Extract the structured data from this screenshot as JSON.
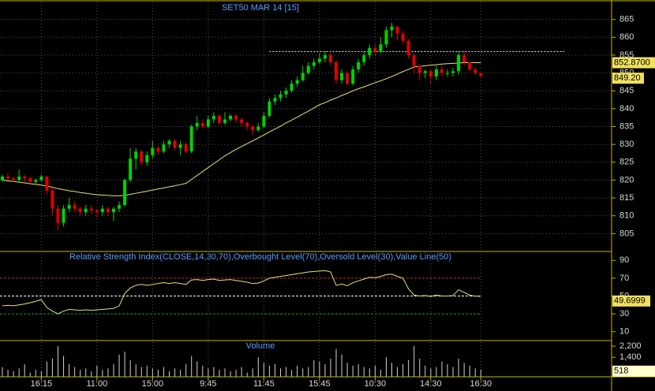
{
  "chart_data": [
    {
      "type": "candlestick",
      "title": "SET50 MAR 14   [15]",
      "categories": [
        null,
        null,
        null,
        null,
        null,
        null,
        null,
        "16:15",
        null,
        null,
        null,
        null,
        null,
        null,
        null,
        null,
        null,
        "11:00",
        null,
        null,
        null,
        null,
        null,
        null,
        null,
        null,
        null,
        "15:00",
        null,
        null,
        null,
        null,
        null,
        null,
        null,
        null,
        null,
        "9:45",
        null,
        null,
        null,
        null,
        null,
        null,
        null,
        null,
        null,
        "11:45",
        null,
        null,
        null,
        null,
        null,
        null,
        null,
        null,
        null,
        "15:45",
        null,
        null,
        null,
        null,
        null,
        null,
        null,
        null,
        null,
        "10:30",
        null,
        null,
        null,
        null,
        null,
        null,
        null,
        null,
        null,
        "14:30",
        null,
        null,
        null,
        null,
        null,
        null,
        null,
        null,
        "16:30"
      ],
      "open": [
        820,
        821,
        820.5,
        820,
        821,
        820.5,
        819.5,
        820,
        821,
        817,
        812,
        808,
        812,
        813,
        812,
        811,
        812,
        811.5,
        811,
        812,
        811,
        812,
        813,
        820,
        826,
        828,
        825,
        827,
        829,
        828,
        830,
        831,
        829,
        830,
        828,
        835,
        836,
        835,
        837,
        838,
        836,
        837,
        838,
        837,
        836,
        835,
        834,
        835,
        838,
        842,
        843,
        844,
        845,
        847,
        848,
        850,
        852,
        853,
        854,
        855,
        853,
        848,
        850,
        847,
        851,
        853,
        855,
        857,
        856,
        858,
        862,
        863,
        861,
        859,
        855,
        852,
        850,
        850.5,
        849,
        851,
        850,
        850,
        850.5,
        855,
        853,
        851,
        850
      ],
      "high": [
        821.5,
        822,
        821,
        823,
        821.5,
        821,
        820.5,
        821.5,
        821,
        818,
        813,
        813,
        815,
        814,
        812.5,
        813,
        813,
        812,
        813,
        812.5,
        812.5,
        814,
        820.5,
        829,
        829,
        828.5,
        828,
        831,
        829.5,
        831,
        831.5,
        831.5,
        831,
        830.5,
        835.5,
        838,
        837,
        838,
        839,
        838.5,
        839,
        838.5,
        838.5,
        837.5,
        836.5,
        835.5,
        836,
        839,
        843,
        844,
        845,
        846,
        848,
        849,
        852,
        853,
        854,
        855.5,
        856,
        855.5,
        853.5,
        851,
        850.5,
        852,
        854,
        856,
        858,
        858,
        860,
        863,
        864,
        863,
        862,
        859.5,
        855.5,
        852.5,
        851,
        851,
        852,
        852,
        851,
        851.5,
        856,
        856,
        853.5,
        851.5,
        850
      ],
      "low": [
        819.5,
        820,
        819.5,
        819.5,
        819.5,
        819,
        819,
        819.5,
        816,
        810,
        806,
        807,
        811,
        811,
        810,
        810,
        810.5,
        809.5,
        810,
        810,
        808.5,
        811,
        812.5,
        819.5,
        823,
        824,
        824,
        826,
        827,
        827.5,
        829,
        828.5,
        827,
        827.5,
        827.5,
        834,
        834.5,
        834.5,
        836,
        835.5,
        835.5,
        836.5,
        836,
        835,
        834,
        832.5,
        833.5,
        834.5,
        837.5,
        841,
        842,
        843,
        844.5,
        846,
        847.5,
        849.5,
        851,
        852.5,
        853,
        852,
        847,
        847,
        846.5,
        846.5,
        850,
        852,
        854,
        855,
        855.5,
        857,
        860,
        859,
        858,
        854,
        850,
        848,
        848.5,
        847,
        848,
        849,
        849,
        849,
        849.5,
        852,
        850.5,
        849.5,
        848.8
      ],
      "close": [
        821,
        820.5,
        820,
        821,
        820.5,
        819.5,
        820,
        821,
        817,
        812,
        808,
        812,
        813,
        812,
        811,
        812,
        811.5,
        811,
        812,
        811,
        812,
        813,
        820,
        826,
        828,
        825,
        827,
        829,
        828,
        830,
        831,
        829,
        830,
        828,
        835,
        836,
        835,
        837,
        838,
        836,
        837,
        838,
        837,
        836,
        835,
        834,
        835,
        838,
        842,
        843,
        844,
        845,
        847,
        848,
        850,
        852,
        853,
        854,
        855,
        853,
        848,
        850,
        847,
        851,
        853,
        855,
        857,
        856,
        858,
        862,
        863,
        861,
        859,
        855,
        852,
        850,
        850.5,
        849,
        851,
        850,
        850,
        850.5,
        855,
        853,
        851,
        850,
        849.2
      ],
      "close_last_label": {
        "value": 849.2,
        "label": "849.20"
      },
      "up_color": "#00d400",
      "down_color": "#e00000",
      "ma": {
        "color": "#e8e27a",
        "values": [
          820,
          819.8,
          819.6,
          819.4,
          819.2,
          819,
          818.8,
          818.6,
          818.3,
          818,
          817.6,
          817.3,
          817,
          816.8,
          816.5,
          816.3,
          816.1,
          815.9,
          815.8,
          815.7,
          815.6,
          815.6,
          815.7,
          816,
          816.3,
          816.6,
          816.9,
          817.2,
          817.5,
          817.8,
          818.1,
          818.4,
          818.7,
          819.1,
          820.2,
          821.3,
          822.4,
          823.5,
          824.6,
          825.7,
          826.8,
          827.7,
          828.6,
          829.4,
          830.2,
          831,
          831.8,
          832.6,
          833.5,
          834.3,
          835.1,
          836,
          836.8,
          837.6,
          838.5,
          839.3,
          840.2,
          841.1,
          841.7,
          842.4,
          843,
          843.7,
          844.3,
          845,
          845.6,
          846.1,
          846.7,
          847.3,
          847.8,
          848.4,
          849,
          849.7,
          850.4,
          851,
          851.7,
          851.9,
          852,
          852.2,
          852.3,
          852.5,
          852.6,
          852.7,
          852.8,
          852.9,
          852.9,
          852.9,
          852.87
        ],
        "last_label": {
          "value": 852.87,
          "label": "852.8700"
        }
      },
      "reference_line": {
        "value": 856,
        "start": 48,
        "end": 101
      },
      "ylim": [
        800,
        870
      ],
      "yticks": [
        805,
        810,
        815,
        820,
        825,
        830,
        835,
        840,
        845,
        850,
        855,
        860,
        865
      ],
      "grid": true
    },
    {
      "type": "line",
      "title": "Relative Strength Index(CLOSE,14,30,70),Overbought Level(70),Oversold Level(30),Value Line(50)",
      "color": "#e8e27a",
      "values": [
        39,
        39.5,
        39,
        40,
        41,
        42.5,
        44,
        46,
        37,
        33,
        30,
        33,
        35,
        34.5,
        34,
        34.5,
        34,
        34.5,
        35,
        35.5,
        36,
        39,
        53,
        59,
        62,
        63,
        62,
        63,
        64,
        65,
        64,
        65,
        64,
        63,
        68,
        68.5,
        67.5,
        68.5,
        69,
        67.5,
        68,
        68.5,
        67.5,
        66.5,
        65.5,
        64,
        64.5,
        67,
        70,
        71,
        72,
        73,
        74,
        75,
        76,
        77,
        77.5,
        78,
        78.5,
        77,
        62,
        63.5,
        61.5,
        65,
        67,
        69,
        71,
        70.5,
        72,
        74,
        74.5,
        72,
        70,
        58,
        51,
        50,
        50.5,
        49.5,
        51,
        50,
        50,
        50.5,
        57,
        54,
        51,
        49.8,
        49.6999
      ],
      "last_label": {
        "value": 49.6999,
        "label": "49.6999"
      },
      "levels": [
        {
          "value": 70,
          "color": "#b83030"
        },
        {
          "value": 50,
          "color": "#ffffff"
        },
        {
          "value": 30,
          "color": "#2a9a2a"
        }
      ],
      "ylim": [
        0,
        100
      ],
      "yticks": [
        10,
        30,
        50,
        70,
        90
      ]
    },
    {
      "type": "bar",
      "title": "Volume",
      "color": "#d0d0d0",
      "values": [
        700,
        500,
        400,
        600,
        900,
        300,
        500,
        400,
        1100,
        1300,
        2200,
        1500,
        900,
        700,
        500,
        600,
        400,
        800,
        500,
        600,
        900,
        1600,
        1800,
        1200,
        900,
        700,
        800,
        600,
        500,
        700,
        400,
        600,
        500,
        900,
        1500,
        1100,
        800,
        600,
        700,
        500,
        600,
        400,
        500,
        700,
        300,
        600,
        1400,
        1000,
        800,
        900,
        600,
        700,
        500,
        800,
        600,
        700,
        1200,
        1100,
        900,
        1300,
        2000,
        1600,
        1000,
        800,
        900,
        700,
        600,
        800,
        500,
        1400,
        1000,
        700,
        900,
        1200,
        2200,
        1300,
        800,
        600,
        700,
        1100,
        900,
        700,
        1300,
        1000,
        800,
        600,
        518
      ],
      "last_label": 518,
      "ylim": [
        0,
        2600
      ],
      "yticks": [
        {
          "value": 1400,
          "label": "1,400"
        },
        {
          "value": 2200,
          "label": "2,200"
        }
      ]
    }
  ]
}
